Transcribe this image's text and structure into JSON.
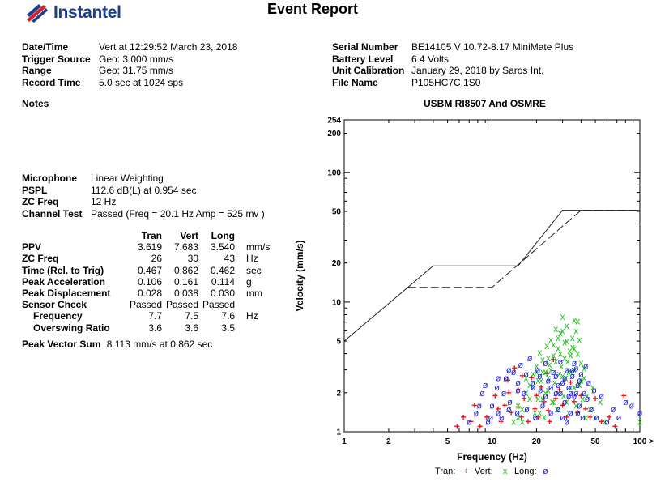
{
  "brand": {
    "name": "Instantel",
    "color": "#1a3f8f",
    "accent": "#d62027"
  },
  "report_title": "Event Report",
  "left_info": [
    {
      "label": "Date/Time",
      "value": "Vert at 12:29:52 March 23, 2018"
    },
    {
      "label": "Trigger Source",
      "value": "Geo: 3.000 mm/s"
    },
    {
      "label": "Range",
      "value": "Geo: 31.75 mm/s"
    },
    {
      "label": "Record Time",
      "value": "5.0 sec at 1024 sps"
    }
  ],
  "right_info": [
    {
      "label": "Serial Number",
      "value": "BE14105 V 10.72-8.17 MiniMate Plus"
    },
    {
      "label": "Battery Level",
      "value": "6.4 Volts"
    },
    {
      "label": "Unit Calibration",
      "value": "January 29, 2018 by Saros Int."
    },
    {
      "label": "File Name",
      "value": "P105HC7C.1S0"
    }
  ],
  "notes_label": "Notes",
  "mic_info": [
    {
      "label": "Microphone",
      "value": "Linear Weighting"
    },
    {
      "label": "PSPL",
      "value": "112.6 dB(L) at 0.954 sec"
    },
    {
      "label": "ZC Freq",
      "value": "12 Hz"
    },
    {
      "label": "Channel Test",
      "value": "Passed (Freq = 20.1 Hz Amp = 525 mv )"
    }
  ],
  "measurements": {
    "headers": [
      "Tran",
      "Vert",
      "Long"
    ],
    "rows": [
      {
        "label": "PPV",
        "values": [
          "3.619",
          "7.683",
          "3.540"
        ],
        "unit": "mm/s"
      },
      {
        "label": "ZC Freq",
        "values": [
          "26",
          "30",
          "43"
        ],
        "unit": "Hz"
      },
      {
        "label": "Time (Rel. to Trig)",
        "values": [
          "0.467",
          "0.862",
          "0.462"
        ],
        "unit": "sec"
      },
      {
        "label": "Peak Acceleration",
        "values": [
          "0.106",
          "0.161",
          "0.114"
        ],
        "unit": "g"
      },
      {
        "label": "Peak Displacement",
        "values": [
          "0.028",
          "0.038",
          "0.030"
        ],
        "unit": "mm"
      },
      {
        "label": "Sensor Check",
        "values": [
          "Passed",
          "Passed",
          "Passed"
        ],
        "unit": ""
      },
      {
        "label": "Frequency",
        "values": [
          "7.7",
          "7.5",
          "7.6"
        ],
        "unit": "Hz"
      },
      {
        "label": "Overswing Ratio",
        "values": [
          "3.6",
          "3.6",
          "3.5"
        ],
        "unit": ""
      }
    ]
  },
  "peak_vector_sum": {
    "label": "Peak Vector Sum",
    "value": "8.113 mm/s at 0.862 sec"
  },
  "chart_data": {
    "type": "scatter",
    "title": "USBM RI8507 And OSMRE",
    "xlabel": "Frequency (Hz)",
    "ylabel": "Velocity (mm/s)",
    "x_scale": "log",
    "y_scale": "log",
    "xlim": [
      1,
      100
    ],
    "ylim": [
      1,
      254
    ],
    "x_ticks": [
      "1",
      "2",
      "5",
      "10",
      "20",
      "50",
      "100"
    ],
    "x_tick_values": [
      1,
      2,
      5,
      10,
      20,
      50,
      100
    ],
    "x_axis_end_marker": ">",
    "y_ticks": [
      "1",
      "2",
      "5",
      "10",
      "20",
      "50",
      "100",
      "200",
      "254"
    ],
    "y_tick_values": [
      1,
      2,
      5,
      10,
      20,
      50,
      100,
      200,
      254
    ],
    "limit_curves": [
      {
        "style": "solid",
        "points": [
          [
            1,
            5
          ],
          [
            4,
            19
          ],
          [
            15,
            19
          ],
          [
            30,
            51
          ],
          [
            100,
            51
          ]
        ]
      },
      {
        "style": "dashed",
        "points": [
          [
            2.7,
            13
          ],
          [
            10,
            13
          ],
          [
            40,
            51
          ],
          [
            100,
            51
          ]
        ]
      }
    ],
    "legend": {
      "position": "bottom",
      "items": [
        {
          "name": "Tran:",
          "marker": "+",
          "color": "#e8141a"
        },
        {
          "name": "Vert:",
          "marker": "x",
          "color": "#1fbf1f"
        },
        {
          "name": "Long:",
          "marker": "ø",
          "color": "#1f1fe0"
        }
      ]
    },
    "series": [
      {
        "name": "Tran",
        "marker": "+",
        "color": "#e8141a",
        "points": [
          [
            5.8,
            1.1
          ],
          [
            6.4,
            1.3
          ],
          [
            7.2,
            1.2
          ],
          [
            7.6,
            1.6
          ],
          [
            8.3,
            1.1
          ],
          [
            9.2,
            1.3
          ],
          [
            10.5,
            1.9
          ],
          [
            11.5,
            1.2
          ],
          [
            12.2,
            1.6
          ],
          [
            12.8,
            2.5
          ],
          [
            13.5,
            1.4
          ],
          [
            14.2,
            3.1
          ],
          [
            15,
            2.1
          ],
          [
            15.8,
            1.3
          ],
          [
            16.5,
            1.8
          ],
          [
            17.5,
            1.2
          ],
          [
            18.5,
            2.6
          ],
          [
            19.5,
            1.5
          ],
          [
            20.5,
            1.3
          ],
          [
            21.5,
            2.2
          ],
          [
            22.5,
            1.7
          ],
          [
            23.5,
            2.8
          ],
          [
            24.5,
            1.2
          ],
          [
            26,
            3.6
          ],
          [
            27,
            1.8
          ],
          [
            28.5,
            2.1
          ],
          [
            30,
            1.6
          ],
          [
            32,
            1.3
          ],
          [
            34,
            2.4
          ],
          [
            36,
            1.7
          ],
          [
            38,
            1.4
          ],
          [
            40,
            1.9
          ],
          [
            43,
            1.5
          ],
          [
            46,
            1.3
          ],
          [
            50,
            1.8
          ],
          [
            55,
            1.2
          ],
          [
            62,
            1.3
          ],
          [
            68,
            1.1
          ],
          [
            78,
            1.9
          ],
          [
            16,
            2.7
          ],
          [
            20,
            1.9
          ],
          [
            24,
            1.45
          ],
          [
            11,
            1.5
          ],
          [
            13,
            2.0
          ],
          [
            15,
            1.55
          ]
        ]
      },
      {
        "name": "Vert",
        "marker": "x",
        "color": "#1fbf1f",
        "points": [
          [
            14,
            1.2
          ],
          [
            15,
            1.6
          ],
          [
            16,
            1.5
          ],
          [
            17,
            2.0
          ],
          [
            18,
            2.3
          ],
          [
            19,
            2.8
          ],
          [
            19.5,
            1.4
          ],
          [
            20,
            3.2
          ],
          [
            20.5,
            1.8
          ],
          [
            21,
            4.1
          ],
          [
            21.5,
            2.5
          ],
          [
            22,
            3.6
          ],
          [
            22.5,
            1.3
          ],
          [
            23,
            2.9
          ],
          [
            23.5,
            4.6
          ],
          [
            24,
            2.1
          ],
          [
            24.5,
            3.3
          ],
          [
            25,
            5.1
          ],
          [
            25.5,
            1.7
          ],
          [
            26,
            3.9
          ],
          [
            26.5,
            2.4
          ],
          [
            27,
            6.2
          ],
          [
            27.5,
            1.5
          ],
          [
            28,
            4.4
          ],
          [
            28.5,
            2.8
          ],
          [
            29,
            5.8
          ],
          [
            29.5,
            3.2
          ],
          [
            30,
            7.7
          ],
          [
            30.5,
            1.9
          ],
          [
            31,
            4.9
          ],
          [
            31.5,
            2.6
          ],
          [
            32,
            6.6
          ],
          [
            32.5,
            3.5
          ],
          [
            33,
            1.4
          ],
          [
            33.5,
            4.2
          ],
          [
            34,
            2.2
          ],
          [
            35,
            5.3
          ],
          [
            36,
            3.0
          ],
          [
            37,
            1.6
          ],
          [
            38,
            4.0
          ],
          [
            39,
            2.3
          ],
          [
            40,
            3.4
          ],
          [
            41,
            1.8
          ],
          [
            42,
            2.6
          ],
          [
            43,
            1.3
          ],
          [
            44,
            1.9
          ],
          [
            46,
            1.5
          ],
          [
            48,
            2.2
          ],
          [
            50,
            1.3
          ],
          [
            54,
            1.7
          ],
          [
            58,
            1.2
          ],
          [
            19,
            2.2
          ],
          [
            20.5,
            2.5
          ],
          [
            22,
            1.8
          ],
          [
            24,
            2.6
          ],
          [
            26,
            1.7
          ],
          [
            28,
            2.0
          ],
          [
            30,
            2.7
          ],
          [
            32,
            1.7
          ],
          [
            34,
            2.9
          ],
          [
            36,
            2.2
          ],
          [
            25,
            3.0
          ],
          [
            27,
            3.5
          ],
          [
            29,
            4.0
          ],
          [
            31,
            3.7
          ],
          [
            33,
            2.9
          ],
          [
            35,
            4.5
          ],
          [
            37,
            6.0
          ],
          [
            39,
            5.1
          ],
          [
            36,
            7.3
          ],
          [
            38,
            7.1
          ],
          [
            28,
            5.3
          ],
          [
            30,
            6.0
          ],
          [
            32,
            5.0
          ],
          [
            26,
            4.7
          ],
          [
            24,
            3.7
          ],
          [
            22,
            2.9
          ],
          [
            18,
            1.8
          ],
          [
            17,
            2.6
          ],
          [
            16,
            1.2
          ],
          [
            15,
            1.3
          ],
          [
            21,
            1.4
          ],
          [
            23,
            2.0
          ],
          [
            40,
            2.5
          ],
          [
            42,
            3.1
          ],
          [
            20,
            2.9
          ],
          [
            34,
            3.9
          ],
          [
            36,
            4.4
          ],
          [
            100,
            1.2
          ]
        ]
      },
      {
        "name": "Long",
        "marker": "ø",
        "color": "#1f1fe0",
        "points": [
          [
            7,
            1.2
          ],
          [
            7.8,
            1.4
          ],
          [
            8.6,
            2.0
          ],
          [
            9.4,
            1.2
          ],
          [
            10,
            1.6
          ],
          [
            10.8,
            2.2
          ],
          [
            11.6,
            1.3
          ],
          [
            12.4,
            2.6
          ],
          [
            13.2,
            1.7
          ],
          [
            14,
            2.9
          ],
          [
            14.8,
            1.4
          ],
          [
            15.6,
            3.3
          ],
          [
            16.4,
            2.0
          ],
          [
            17.2,
            1.5
          ],
          [
            18,
            3.7
          ],
          [
            18.8,
            2.4
          ],
          [
            19.6,
            1.3
          ],
          [
            20.4,
            3.0
          ],
          [
            21.2,
            2.1
          ],
          [
            22,
            1.6
          ],
          [
            23,
            3.4
          ],
          [
            24,
            2.5
          ],
          [
            25,
            1.4
          ],
          [
            26,
            2.9
          ],
          [
            27,
            2.0
          ],
          [
            28,
            1.5
          ],
          [
            29,
            3.5
          ],
          [
            30,
            2.4
          ],
          [
            31,
            1.7
          ],
          [
            32,
            3.0
          ],
          [
            33,
            2.2
          ],
          [
            34,
            1.4
          ],
          [
            35,
            2.7
          ],
          [
            36,
            1.9
          ],
          [
            37,
            3.1
          ],
          [
            38,
            2.3
          ],
          [
            39,
            1.6
          ],
          [
            40,
            2.8
          ],
          [
            41,
            1.3
          ],
          [
            42,
            2.0
          ],
          [
            43,
            3.2
          ],
          [
            44,
            1.8
          ],
          [
            45,
            2.4
          ],
          [
            47,
            1.5
          ],
          [
            49,
            2.1
          ],
          [
            51,
            1.3
          ],
          [
            55,
            1.9
          ],
          [
            60,
            1.2
          ],
          [
            66,
            1.5
          ],
          [
            72,
            1.3
          ],
          [
            80,
            1.7
          ],
          [
            88,
            1.6
          ],
          [
            100,
            1.4
          ],
          [
            8.2,
            1.6
          ],
          [
            9,
            2.3
          ],
          [
            11,
            2.6
          ],
          [
            12,
            2.0
          ],
          [
            13,
            3.0
          ],
          [
            15,
            2.4
          ],
          [
            17,
            2.8
          ],
          [
            19,
            2.2
          ],
          [
            21,
            2.7
          ],
          [
            23,
            1.9
          ],
          [
            25,
            2.2
          ],
          [
            27,
            2.7
          ],
          [
            29,
            2.0
          ],
          [
            31,
            2.6
          ],
          [
            33,
            1.9
          ],
          [
            35,
            3.0
          ],
          [
            37,
            2.0
          ],
          [
            39,
            2.5
          ],
          [
            36,
            3.4
          ],
          [
            38,
            1.4
          ],
          [
            28,
            2.3
          ],
          [
            30,
            1.3
          ],
          [
            32,
            1.2
          ],
          [
            34,
            2.0
          ],
          [
            15,
            2.1
          ],
          [
            13,
            1.5
          ],
          [
            11,
            1.4
          ],
          [
            9.8,
            1.3
          ]
        ]
      }
    ]
  }
}
